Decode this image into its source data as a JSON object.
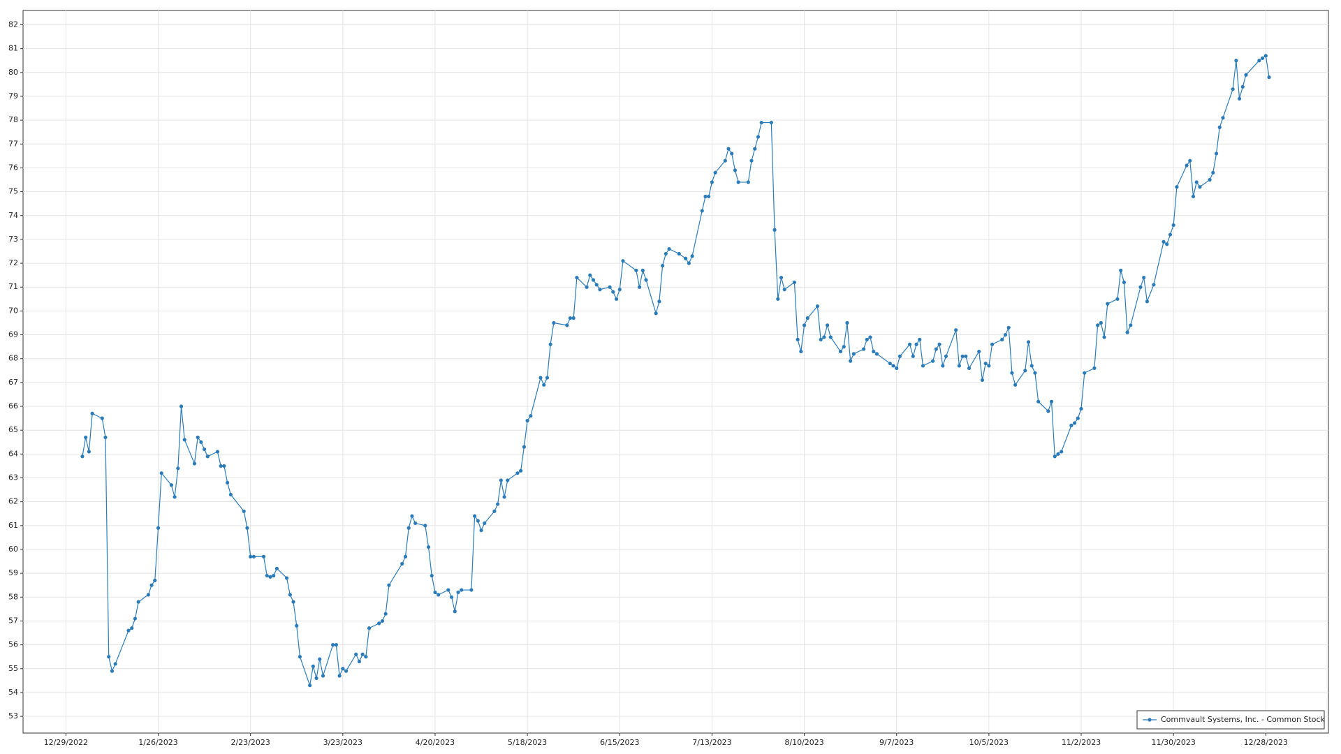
{
  "chart_data": {
    "type": "line",
    "xlim": [
      "12/16/2022",
      "1/16/2024"
    ],
    "xticks": [
      "12/29/2022",
      "1/26/2023",
      "2/23/2023",
      "3/23/2023",
      "4/20/2023",
      "5/18/2023",
      "6/15/2023",
      "7/13/2023",
      "8/10/2023",
      "9/7/2023",
      "10/5/2023",
      "11/2/2023",
      "11/30/2023",
      "12/28/2023"
    ],
    "ylim": [
      52.3,
      82.6
    ],
    "yticks": [
      53,
      54,
      55,
      56,
      57,
      58,
      59,
      60,
      61,
      62,
      63,
      64,
      65,
      66,
      67,
      68,
      69,
      70,
      71,
      72,
      73,
      74,
      75,
      76,
      77,
      78,
      79,
      80,
      81,
      82
    ],
    "grid": true,
    "legend": "lower right",
    "x": [
      "1/3/2023",
      "1/4/2023",
      "1/5/2023",
      "1/6/2023",
      "1/9/2023",
      "1/10/2023",
      "1/11/2023",
      "1/12/2023",
      "1/13/2023",
      "1/17/2023",
      "1/18/2023",
      "1/19/2023",
      "1/20/2023",
      "1/23/2023",
      "1/24/2023",
      "1/25/2023",
      "1/26/2023",
      "1/27/2023",
      "1/30/2023",
      "1/31/2023",
      "2/1/2023",
      "2/2/2023",
      "2/3/2023",
      "2/6/2023",
      "2/7/2023",
      "2/8/2023",
      "2/9/2023",
      "2/10/2023",
      "2/13/2023",
      "2/14/2023",
      "2/15/2023",
      "2/16/2023",
      "2/17/2023",
      "2/21/2023",
      "2/22/2023",
      "2/23/2023",
      "2/24/2023",
      "2/27/2023",
      "2/28/2023",
      "3/1/2023",
      "3/2/2023",
      "3/3/2023",
      "3/6/2023",
      "3/7/2023",
      "3/8/2023",
      "3/9/2023",
      "3/10/2023",
      "3/13/2023",
      "3/14/2023",
      "3/15/2023",
      "3/16/2023",
      "3/17/2023",
      "3/20/2023",
      "3/21/2023",
      "3/22/2023",
      "3/23/2023",
      "3/24/2023",
      "3/27/2023",
      "3/28/2023",
      "3/29/2023",
      "3/30/2023",
      "3/31/2023",
      "4/3/2023",
      "4/4/2023",
      "4/5/2023",
      "4/6/2023",
      "4/10/2023",
      "4/11/2023",
      "4/12/2023",
      "4/13/2023",
      "4/14/2023",
      "4/17/2023",
      "4/18/2023",
      "4/19/2023",
      "4/20/2023",
      "4/21/2023",
      "4/24/2023",
      "4/25/2023",
      "4/26/2023",
      "4/27/2023",
      "4/28/2023",
      "5/1/2023",
      "5/2/2023",
      "5/3/2023",
      "5/4/2023",
      "5/5/2023",
      "5/8/2023",
      "5/9/2023",
      "5/10/2023",
      "5/11/2023",
      "5/12/2023",
      "5/15/2023",
      "5/16/2023",
      "5/17/2023",
      "5/18/2023",
      "5/19/2023",
      "5/22/2023",
      "5/23/2023",
      "5/24/2023",
      "5/25/2023",
      "5/26/2023",
      "5/30/2023",
      "5/31/2023",
      "6/1/2023",
      "6/2/2023",
      "6/5/2023",
      "6/6/2023",
      "6/7/2023",
      "6/8/2023",
      "6/9/2023",
      "6/12/2023",
      "6/13/2023",
      "6/14/2023",
      "6/15/2023",
      "6/16/2023",
      "6/20/2023",
      "6/21/2023",
      "6/22/2023",
      "6/23/2023",
      "6/26/2023",
      "6/27/2023",
      "6/28/2023",
      "6/29/2023",
      "6/30/2023",
      "7/3/2023",
      "7/5/2023",
      "7/6/2023",
      "7/7/2023",
      "7/10/2023",
      "7/11/2023",
      "7/12/2023",
      "7/13/2023",
      "7/14/2023",
      "7/17/2023",
      "7/18/2023",
      "7/19/2023",
      "7/20/2023",
      "7/21/2023",
      "7/24/2023",
      "7/25/2023",
      "7/26/2023",
      "7/27/2023",
      "7/28/2023",
      "7/31/2023",
      "8/1/2023",
      "8/2/2023",
      "8/3/2023",
      "8/4/2023",
      "8/7/2023",
      "8/8/2023",
      "8/9/2023",
      "8/10/2023",
      "8/11/2023",
      "8/14/2023",
      "8/15/2023",
      "8/16/2023",
      "8/17/2023",
      "8/18/2023",
      "8/21/2023",
      "8/22/2023",
      "8/23/2023",
      "8/24/2023",
      "8/25/2023",
      "8/28/2023",
      "8/29/2023",
      "8/30/2023",
      "8/31/2023",
      "9/1/2023",
      "9/5/2023",
      "9/6/2023",
      "9/7/2023",
      "9/8/2023",
      "9/11/2023",
      "9/12/2023",
      "9/13/2023",
      "9/14/2023",
      "9/15/2023",
      "9/18/2023",
      "9/19/2023",
      "9/20/2023",
      "9/21/2023",
      "9/22/2023",
      "9/25/2023",
      "9/26/2023",
      "9/27/2023",
      "9/28/2023",
      "9/29/2023",
      "10/2/2023",
      "10/3/2023",
      "10/4/2023",
      "10/5/2023",
      "10/6/2023",
      "10/9/2023",
      "10/10/2023",
      "10/11/2023",
      "10/12/2023",
      "10/13/2023",
      "10/16/2023",
      "10/17/2023",
      "10/18/2023",
      "10/19/2023",
      "10/20/2023",
      "10/23/2023",
      "10/24/2023",
      "10/25/2023",
      "10/26/2023",
      "10/27/2023",
      "10/30/2023",
      "10/31/2023",
      "11/1/2023",
      "11/2/2023",
      "11/3/2023",
      "11/6/2023",
      "11/7/2023",
      "11/8/2023",
      "11/9/2023",
      "11/10/2023",
      "11/13/2023",
      "11/14/2023",
      "11/15/2023",
      "11/16/2023",
      "11/17/2023",
      "11/20/2023",
      "11/21/2023",
      "11/22/2023",
      "11/24/2023",
      "11/27/2023",
      "11/28/2023",
      "11/29/2023",
      "11/30/2023",
      "12/1/2023",
      "12/4/2023",
      "12/5/2023",
      "12/6/2023",
      "12/7/2023",
      "12/8/2023",
      "12/11/2023",
      "12/12/2023",
      "12/13/2023",
      "12/14/2023",
      "12/15/2023",
      "12/18/2023",
      "12/19/2023",
      "12/20/2023",
      "12/21/2023",
      "12/22/2023",
      "12/26/2023",
      "12/27/2023",
      "12/28/2023",
      "12/29/2023"
    ],
    "series": [
      {
        "name": "Commvault Systems, Inc. - Common Stock",
        "color": "#2b7bb9",
        "values": [
          63.9,
          64.7,
          64.1,
          65.7,
          65.5,
          64.7,
          55.5,
          54.9,
          55.2,
          56.6,
          56.7,
          57.1,
          57.8,
          58.1,
          58.5,
          58.7,
          60.9,
          63.2,
          62.7,
          62.2,
          63.4,
          66.0,
          64.6,
          63.6,
          64.7,
          64.5,
          64.2,
          63.9,
          64.1,
          63.5,
          63.5,
          62.8,
          62.3,
          61.6,
          60.9,
          59.7,
          59.7,
          59.7,
          58.9,
          58.85,
          58.9,
          59.2,
          58.8,
          58.1,
          57.8,
          56.8,
          55.5,
          54.3,
          55.1,
          54.6,
          55.4,
          54.7,
          56.0,
          56.0,
          54.7,
          55.0,
          54.9,
          55.6,
          55.3,
          55.6,
          55.5,
          56.7,
          56.9,
          57.0,
          57.3,
          58.5,
          59.4,
          59.7,
          60.9,
          61.4,
          61.1,
          61.0,
          60.1,
          58.9,
          58.2,
          58.1,
          58.3,
          58.0,
          57.4,
          58.2,
          58.3,
          58.3,
          61.4,
          61.2,
          60.8,
          61.1,
          61.6,
          61.9,
          62.9,
          62.2,
          62.9,
          63.2,
          63.3,
          64.3,
          65.4,
          65.6,
          67.2,
          66.9,
          67.2,
          68.6,
          69.5,
          69.4,
          69.7,
          69.7,
          71.4,
          71.0,
          71.5,
          71.3,
          71.1,
          70.9,
          71.0,
          70.8,
          70.5,
          70.9,
          72.1,
          71.7,
          71.0,
          71.7,
          71.3,
          69.9,
          70.4,
          71.9,
          72.4,
          72.6,
          72.4,
          72.2,
          72.0,
          72.3,
          74.2,
          74.8,
          74.8,
          75.4,
          75.8,
          76.3,
          76.8,
          76.6,
          75.9,
          75.4,
          75.4,
          76.3,
          76.8,
          77.3,
          77.9,
          77.9,
          73.4,
          70.5,
          71.4,
          70.9,
          71.2,
          68.8,
          68.3,
          69.4,
          69.7,
          70.2,
          68.8,
          68.9,
          69.4,
          68.9,
          68.3,
          68.5,
          69.5,
          67.9,
          68.2,
          68.4,
          68.8,
          68.9,
          68.3,
          68.2,
          67.8,
          67.7,
          67.6,
          68.1,
          68.6,
          68.1,
          68.6,
          68.8,
          67.7,
          67.9,
          68.4,
          68.6,
          67.7,
          68.1,
          69.2,
          67.7,
          68.1,
          68.1,
          67.6,
          68.3,
          67.1,
          67.8,
          67.7,
          68.6,
          68.8,
          69.0,
          69.3,
          67.4,
          66.9,
          67.5,
          68.7,
          67.7,
          67.4,
          66.2,
          65.8,
          66.2,
          63.9,
          64.0,
          64.1,
          65.2,
          65.3,
          65.5,
          65.9,
          67.4,
          67.6,
          69.4,
          69.5,
          68.9,
          70.3,
          70.5,
          71.7,
          71.2,
          69.1,
          69.4,
          71.0,
          71.4,
          70.4,
          71.1,
          72.9,
          72.8,
          73.2,
          73.6,
          75.2,
          76.1,
          76.3,
          74.8,
          75.4,
          75.2,
          75.5,
          75.8,
          76.6,
          77.7,
          78.1,
          79.3,
          80.5,
          78.9,
          79.4,
          79.9,
          80.5,
          80.6,
          80.7,
          79.8
        ]
      }
    ]
  }
}
